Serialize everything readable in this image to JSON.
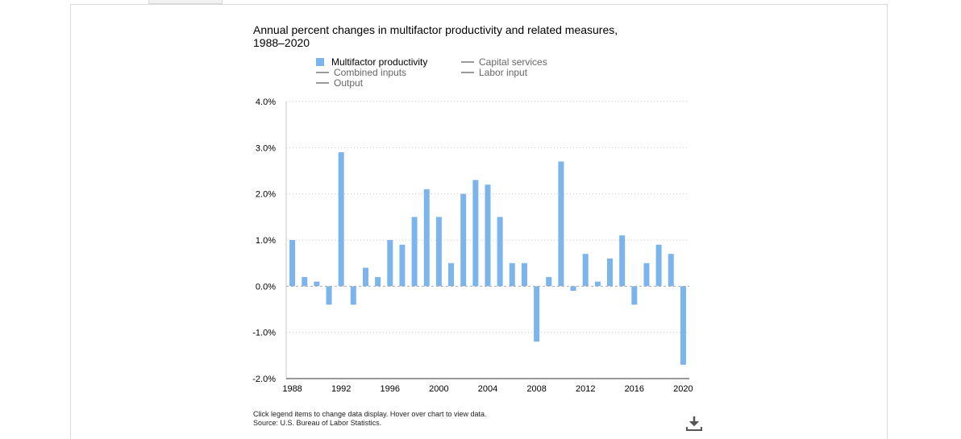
{
  "chart_data": {
    "type": "bar",
    "title": "Annual percent changes in multifactor productivity and related measures, 1988–2020",
    "x": [
      1988,
      1989,
      1990,
      1991,
      1992,
      1993,
      1994,
      1995,
      1996,
      1997,
      1998,
      1999,
      2000,
      2001,
      2002,
      2003,
      2004,
      2005,
      2006,
      2007,
      2008,
      2009,
      2010,
      2011,
      2012,
      2013,
      2014,
      2015,
      2016,
      2017,
      2018,
      2019,
      2020
    ],
    "series": [
      {
        "name": "Multifactor productivity",
        "values": [
          1.0,
          0.2,
          0.1,
          -0.4,
          2.9,
          -0.4,
          0.4,
          0.2,
          1.0,
          0.9,
          1.5,
          2.1,
          1.5,
          0.5,
          2.0,
          2.3,
          2.2,
          1.5,
          0.5,
          0.5,
          -1.2,
          0.2,
          2.7,
          -0.1,
          0.7,
          0.1,
          0.6,
          1.1,
          -0.4,
          0.5,
          0.9,
          0.7,
          -1.7
        ]
      }
    ],
    "ylim": [
      -2.0,
      4.0
    ],
    "yticks": [
      -2.0,
      -1.0,
      0.0,
      1.0,
      2.0,
      3.0,
      4.0
    ],
    "ytick_labels": [
      "-2.0%",
      "-1.0%",
      "0.0%",
      "1.0%",
      "2.0%",
      "3.0%",
      "4.0%"
    ],
    "xtick_labels": [
      "1988",
      "1992",
      "1996",
      "2000",
      "2004",
      "2008",
      "2012",
      "2016",
      "2020"
    ],
    "grid": "horizontal-dotted",
    "legend_placement": "top",
    "bar_color": "#7cb5ec"
  },
  "legend": {
    "items": [
      {
        "label": "Multifactor productivity",
        "type": "bar",
        "active": true
      },
      {
        "label": "Capital services",
        "type": "line",
        "active": false
      },
      {
        "label": "Combined inputs",
        "type": "line",
        "active": false
      },
      {
        "label": "Labor input",
        "type": "line",
        "active": false
      },
      {
        "label": "Output",
        "type": "line",
        "active": false
      }
    ]
  },
  "footer": {
    "note": "Click legend items to change data display. Hover over chart to view data.",
    "source": "Source: U.S. Bureau of Labor Statistics."
  },
  "icons": {
    "download": "download-icon"
  }
}
